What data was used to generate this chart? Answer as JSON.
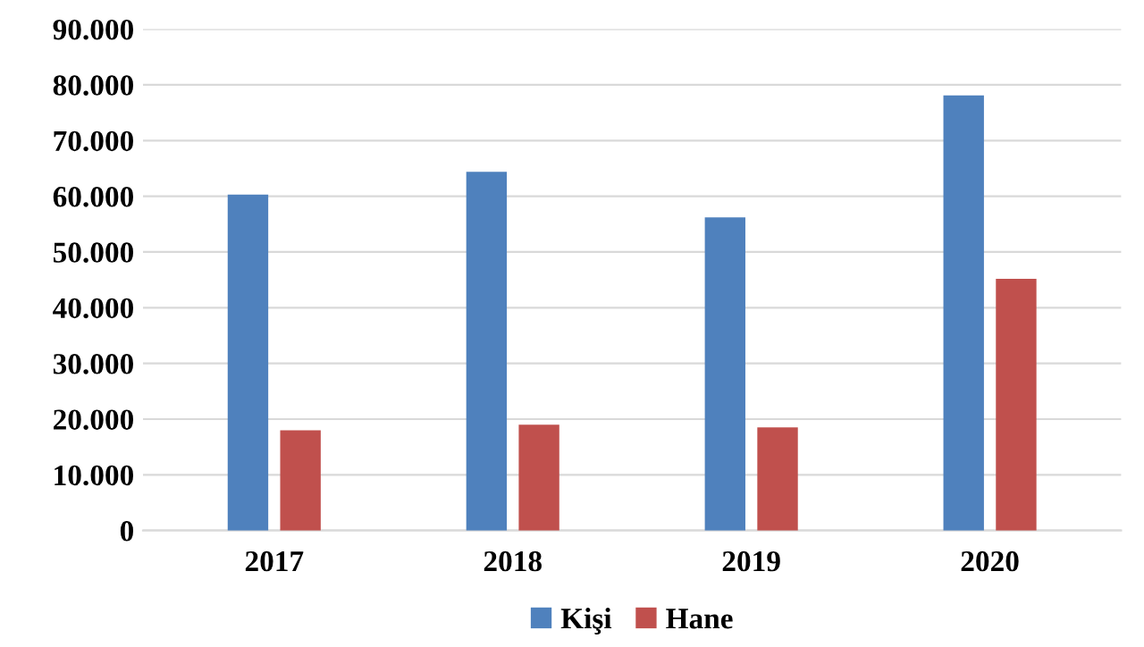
{
  "chart_data": {
    "type": "bar",
    "categories": [
      "2017",
      "2018",
      "2019",
      "2020"
    ],
    "series": [
      {
        "name": "Kişi",
        "color": "#4f81bd",
        "values": [
          60300,
          64400,
          56200,
          78100
        ]
      },
      {
        "name": "Hane",
        "color": "#c0504d",
        "values": [
          18000,
          19000,
          18500,
          45200
        ]
      }
    ],
    "ylim": [
      0,
      90000
    ],
    "yticks": [
      {
        "value": 0,
        "label": "0"
      },
      {
        "value": 10000,
        "label": "10.000"
      },
      {
        "value": 20000,
        "label": "20.000"
      },
      {
        "value": 30000,
        "label": "30.000"
      },
      {
        "value": 40000,
        "label": "40.000"
      },
      {
        "value": 50000,
        "label": "50.000"
      },
      {
        "value": 60000,
        "label": "60.000"
      },
      {
        "value": 70000,
        "label": "70.000"
      },
      {
        "value": 80000,
        "label": "80.000"
      },
      {
        "value": 90000,
        "label": "90.000"
      }
    ],
    "grid": "y",
    "legend": "bottom"
  }
}
